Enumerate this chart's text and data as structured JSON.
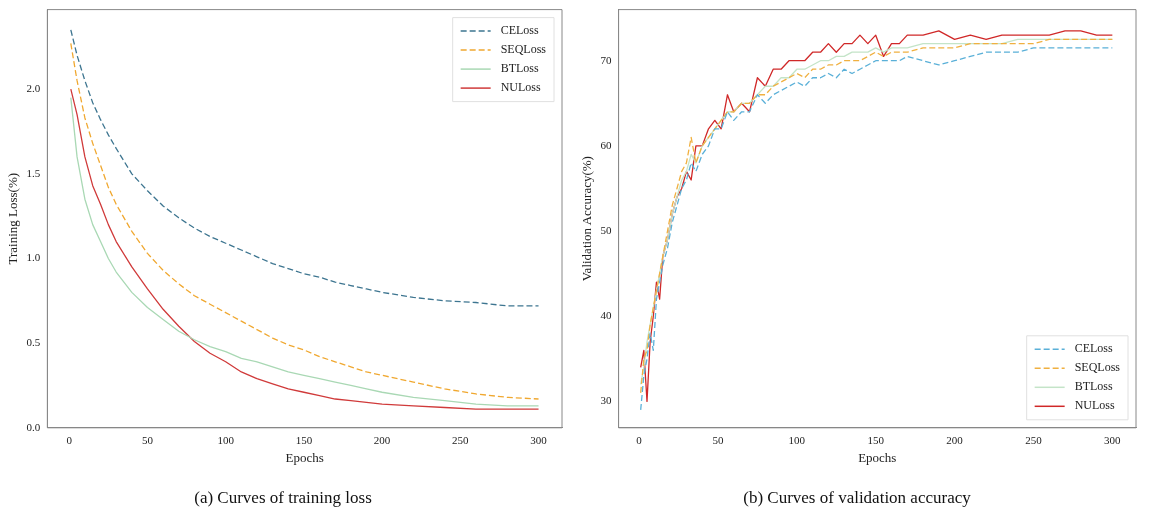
{
  "chart_data": [
    {
      "type": "line",
      "title": "(a) Curves of training loss",
      "xlabel": "Epochs",
      "ylabel": "Training Loss(%)",
      "x": [
        1,
        5,
        10,
        15,
        20,
        25,
        30,
        40,
        50,
        60,
        70,
        80,
        90,
        100,
        110,
        120,
        130,
        140,
        150,
        160,
        170,
        180,
        190,
        200,
        220,
        240,
        260,
        280,
        300
      ],
      "xlim": [
        -14,
        315
      ],
      "xticks": [
        0,
        50,
        100,
        150,
        200,
        250,
        300
      ],
      "ylim": [
        0,
        2.47
      ],
      "yticks": [
        {
          "value": 0,
          "label": "0.0"
        },
        {
          "value": 0.5,
          "label": "0.5"
        },
        {
          "value": 1,
          "label": "1.0"
        },
        {
          "value": 1.5,
          "label": "1.5"
        },
        {
          "value": 2,
          "label": "2.0"
        }
      ],
      "legend": "top right",
      "grid": false,
      "series": [
        {
          "name": "CELoss",
          "color": "#3d7590",
          "line_style": "dashed",
          "values": [
            2.35,
            2.2,
            2.05,
            1.92,
            1.82,
            1.73,
            1.65,
            1.5,
            1.4,
            1.31,
            1.24,
            1.18,
            1.13,
            1.09,
            1.05,
            1.01,
            0.97,
            0.94,
            0.91,
            0.89,
            0.86,
            0.84,
            0.82,
            0.8,
            0.77,
            0.75,
            0.74,
            0.72,
            0.72
          ]
        },
        {
          "name": "SEQLoss",
          "color": "#f0a830",
          "line_style": "dashed",
          "values": [
            2.27,
            2.05,
            1.83,
            1.68,
            1.55,
            1.42,
            1.32,
            1.16,
            1.03,
            0.93,
            0.85,
            0.78,
            0.73,
            0.68,
            0.63,
            0.58,
            0.53,
            0.49,
            0.46,
            0.42,
            0.39,
            0.36,
            0.33,
            0.31,
            0.27,
            0.23,
            0.2,
            0.18,
            0.17
          ]
        },
        {
          "name": "BTLoss",
          "color": "#a9d8b4",
          "line_style": "solid",
          "values": [
            1.95,
            1.6,
            1.35,
            1.2,
            1.1,
            1.0,
            0.92,
            0.8,
            0.71,
            0.64,
            0.57,
            0.52,
            0.48,
            0.45,
            0.41,
            0.39,
            0.36,
            0.33,
            0.31,
            0.29,
            0.27,
            0.25,
            0.23,
            0.21,
            0.18,
            0.16,
            0.14,
            0.13,
            0.13
          ]
        },
        {
          "name": "NULoss",
          "color": "#d03a3a",
          "line_style": "solid",
          "values": [
            2.0,
            1.85,
            1.6,
            1.43,
            1.32,
            1.2,
            1.1,
            0.95,
            0.82,
            0.7,
            0.6,
            0.51,
            0.44,
            0.39,
            0.33,
            0.29,
            0.26,
            0.23,
            0.21,
            0.19,
            0.17,
            0.16,
            0.15,
            0.14,
            0.13,
            0.12,
            0.11,
            0.11,
            0.11
          ]
        }
      ]
    },
    {
      "type": "line",
      "title": "(b) Curves of validation accuracy",
      "xlabel": "Epochs",
      "ylabel": "Validation Accuracy(%)",
      "x": [
        1,
        3,
        5,
        7,
        9,
        11,
        13,
        15,
        18,
        21,
        24,
        27,
        30,
        33,
        36,
        40,
        44,
        48,
        52,
        56,
        60,
        65,
        70,
        75,
        80,
        85,
        90,
        95,
        100,
        105,
        110,
        115,
        120,
        125,
        130,
        135,
        140,
        145,
        150,
        155,
        160,
        165,
        170,
        180,
        190,
        200,
        210,
        220,
        230,
        240,
        250,
        260,
        270,
        280,
        290,
        300
      ],
      "xlim": [
        -13,
        315
      ],
      "xticks": [
        0,
        50,
        100,
        150,
        200,
        250,
        300
      ],
      "ylim": [
        26.9,
        76
      ],
      "yticks": [
        30,
        40,
        50,
        60,
        70
      ],
      "legend": "bottom right",
      "grid": false,
      "series": [
        {
          "name": "CELoss",
          "color": "#5ab0d8",
          "line_style": "dashed",
          "values": [
            29,
            33,
            35,
            38,
            36,
            42,
            44,
            46,
            48,
            51,
            53,
            55,
            56,
            58,
            57,
            59,
            60,
            62,
            62,
            64,
            63,
            64,
            64,
            66,
            65,
            66,
            66.5,
            67,
            67.5,
            67,
            68,
            68,
            68.5,
            68,
            69,
            68.5,
            69,
            69.5,
            70,
            70,
            70,
            70,
            70.5,
            70,
            69.5,
            70,
            70.5,
            71,
            71,
            71,
            71.5,
            71.5,
            71.5,
            71.5,
            71.5,
            71.5
          ]
        },
        {
          "name": "SEQLoss",
          "color": "#f0b040",
          "line_style": "dashed",
          "values": [
            31,
            35,
            36,
            39,
            41,
            43,
            45,
            47,
            50,
            53,
            55,
            57,
            58,
            61,
            58,
            60,
            61,
            62,
            63,
            64,
            64,
            65,
            65,
            66,
            66,
            67,
            67.5,
            68,
            68.5,
            68,
            69,
            69,
            69.5,
            69.5,
            70,
            70,
            70,
            70.5,
            71,
            70.5,
            71,
            71,
            71,
            71.5,
            71.5,
            71.5,
            72,
            72,
            72,
            72,
            72,
            72.5,
            72.5,
            72.5,
            72.5,
            72.5
          ]
        },
        {
          "name": "BTLoss",
          "color": "#c4e4c8",
          "line_style": "solid",
          "values": [
            32,
            34,
            37,
            39,
            41,
            43,
            45,
            47,
            49,
            52,
            54,
            56,
            57,
            59,
            58,
            60,
            61,
            62,
            63,
            64,
            64,
            65,
            65,
            66,
            67,
            67,
            68,
            68,
            69,
            69,
            69.5,
            70,
            70,
            70.5,
            70.5,
            71,
            71,
            71,
            71.5,
            71,
            71.5,
            71.5,
            71.5,
            72,
            72,
            72,
            72,
            72,
            72,
            72.5,
            72.5,
            72.5,
            72.5,
            72.5,
            72.5,
            72.5
          ]
        },
        {
          "name": "NULoss",
          "color": "#d02828",
          "line_style": "solid",
          "values": [
            34,
            36,
            30,
            37,
            40,
            44,
            42,
            47,
            49,
            52,
            54,
            55,
            57,
            56,
            60,
            60,
            62,
            63,
            62,
            66,
            64,
            65,
            64,
            68,
            67,
            69,
            69,
            70,
            70,
            70,
            71,
            71,
            72,
            71,
            72,
            72,
            73,
            72,
            73,
            70.5,
            72,
            72,
            73,
            73,
            73.5,
            72.5,
            73,
            72.5,
            73,
            73,
            73,
            73,
            73.5,
            73.5,
            73,
            73
          ]
        }
      ]
    }
  ]
}
